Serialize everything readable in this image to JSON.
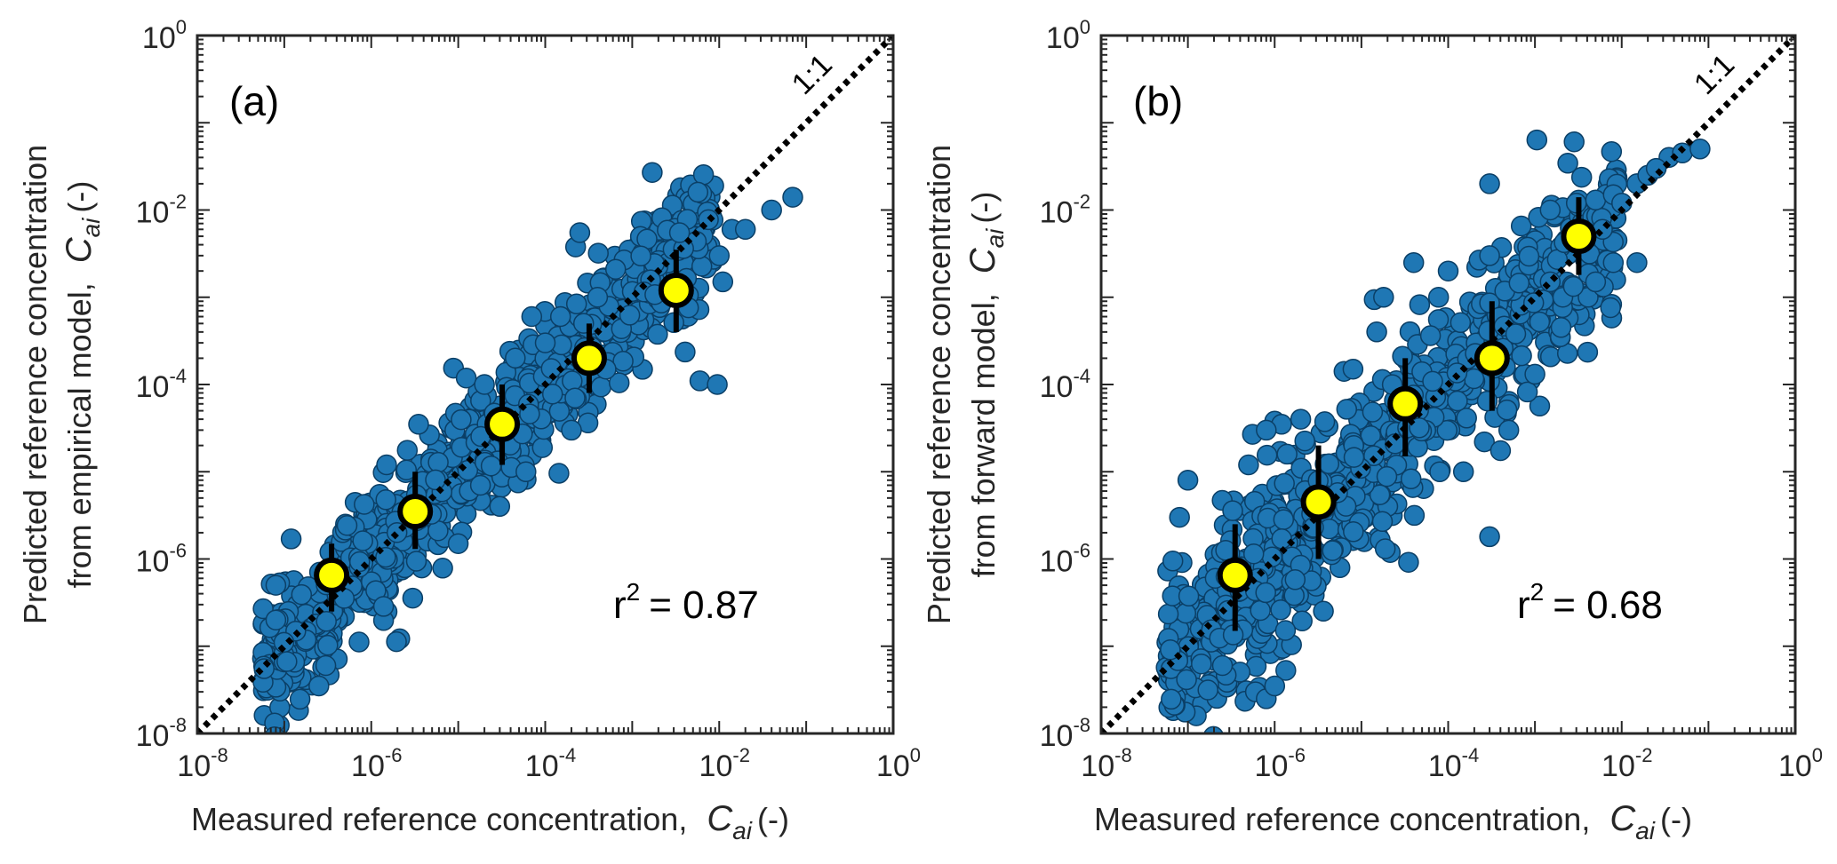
{
  "chart_data": [
    {
      "type": "scatter",
      "panel_label": "(a)",
      "xscale": "log",
      "yscale": "log",
      "xlim": [
        1e-08,
        1
      ],
      "ylim": [
        1e-08,
        1
      ],
      "xticks": [
        "10^-8",
        "10^-6",
        "10^-4",
        "10^-2",
        "10^0"
      ],
      "yticks": [
        "10^-8",
        "10^-6",
        "10^-4",
        "10^-2",
        "10^0"
      ],
      "xlabel": "Measured reference concentration,",
      "ylabel_line1": "Predicted reference concentration",
      "ylabel_line2": "from empirical model,",
      "symbol": "C",
      "symbol_sub": "ai",
      "unit": "(-)",
      "one_to_one_label": "1:1",
      "r2_label": "r",
      "r2_sup": "2",
      "r2_value": "= 0.87",
      "point_color": "#1f77b4",
      "bin_color": "#ffff00",
      "bins": [
        {
          "x": 3.5e-07,
          "y": 6.5e-07,
          "ylo": 2.5e-07,
          "yhi": 1.5e-06
        },
        {
          "x": 3.2e-06,
          "y": 3.5e-06,
          "ylo": 1.3e-06,
          "yhi": 1e-05
        },
        {
          "x": 3.2e-05,
          "y": 3.5e-05,
          "ylo": 1.2e-05,
          "yhi": 0.0001
        },
        {
          "x": 0.00032,
          "y": 0.0002,
          "ylo": 8e-05,
          "yhi": 0.0005
        },
        {
          "x": 0.0032,
          "y": 0.0012,
          "ylo": 0.0004,
          "yhi": 0.0035
        }
      ],
      "outliers": [
        {
          "x": 2e-05,
          "y": 0.0001
        },
        {
          "x": 0.0001,
          "y": 0.0003
        },
        {
          "x": 0.0002,
          "y": 3e-05
        },
        {
          "x": 0.00025,
          "y": 0.0055
        },
        {
          "x": 0.0035,
          "y": 0.0055
        },
        {
          "x": 0.006,
          "y": 0.00011
        },
        {
          "x": 0.0095,
          "y": 0.0001
        },
        {
          "x": 0.011,
          "y": 0.0015
        },
        {
          "x": 0.014,
          "y": 0.006
        },
        {
          "x": 0.02,
          "y": 0.006
        },
        {
          "x": 0.04,
          "y": 0.01
        },
        {
          "x": 0.07,
          "y": 0.014
        },
        {
          "x": 0.01,
          "y": 0.003
        },
        {
          "x": 2.5e-07,
          "y": 3.5e-08
        },
        {
          "x": 3e-07,
          "y": 6e-08
        },
        {
          "x": 8e-08,
          "y": 2e-07
        },
        {
          "x": 8e-08,
          "y": 5e-07
        },
        {
          "x": 1.2e-07,
          "y": 1.7e-06
        },
        {
          "x": 3.5e-06,
          "y": 3.5e-05
        },
        {
          "x": 1.5e-06,
          "y": 1.2e-05
        },
        {
          "x": 1.8e-05,
          "y": 7e-06
        },
        {
          "x": 1e-05,
          "y": 1.5e-06
        },
        {
          "x": 3e-05,
          "y": 4e-06
        },
        {
          "x": 6e-05,
          "y": 1e-05
        },
        {
          "x": 0.00022,
          "y": 7e-05
        },
        {
          "x": 0.0005,
          "y": 0.00015
        },
        {
          "x": 0.00015,
          "y": 0.0006
        },
        {
          "x": 7e-05,
          "y": 0.0006
        },
        {
          "x": 0.0004,
          "y": 0.001
        }
      ]
    },
    {
      "type": "scatter",
      "panel_label": "(b)",
      "xscale": "log",
      "yscale": "log",
      "xlim": [
        1e-08,
        1
      ],
      "ylim": [
        1e-08,
        1
      ],
      "xticks": [
        "10^-8",
        "10^-6",
        "10^-4",
        "10^-2",
        "10^0"
      ],
      "yticks": [
        "10^-8",
        "10^-6",
        "10^-4",
        "10^-2",
        "10^0"
      ],
      "xlabel": "Measured reference concentration,",
      "ylabel_line1": "Predicted reference concentration",
      "ylabel_line2": "from forward model,",
      "symbol": "C",
      "symbol_sub": "ai",
      "unit": "(-)",
      "one_to_one_label": "1:1",
      "r2_label": "r",
      "r2_sup": "2",
      "r2_value": "= 0.68",
      "point_color": "#1f77b4",
      "bin_color": "#ffff00",
      "bins": [
        {
          "x": 3.5e-07,
          "y": 6.5e-07,
          "ylo": 1.5e-07,
          "yhi": 2.5e-06
        },
        {
          "x": 3.2e-06,
          "y": 4.5e-06,
          "ylo": 1e-06,
          "yhi": 2e-05
        },
        {
          "x": 3.2e-05,
          "y": 6e-05,
          "ylo": 1.5e-05,
          "yhi": 0.0002
        },
        {
          "x": 0.00032,
          "y": 0.0002,
          "ylo": 5e-05,
          "yhi": 0.0009
        },
        {
          "x": 0.0032,
          "y": 0.005,
          "ylo": 0.0018,
          "yhi": 0.014
        }
      ],
      "outliers": [
        {
          "x": 0.0003,
          "y": 0.02
        },
        {
          "x": 0.0015,
          "y": 0.01
        },
        {
          "x": 0.003,
          "y": 0.012
        },
        {
          "x": 0.005,
          "y": 0.013
        },
        {
          "x": 0.008,
          "y": 0.015
        },
        {
          "x": 0.01,
          "y": 0.012
        },
        {
          "x": 0.015,
          "y": 0.02
        },
        {
          "x": 0.02,
          "y": 0.025
        },
        {
          "x": 0.035,
          "y": 0.04
        },
        {
          "x": 0.05,
          "y": 0.045
        },
        {
          "x": 0.08,
          "y": 0.05
        },
        {
          "x": 0.025,
          "y": 0.03
        },
        {
          "x": 0.006,
          "y": 0.006
        },
        {
          "x": 0.008,
          "y": 0.0025
        },
        {
          "x": 0.015,
          "y": 0.0025
        },
        {
          "x": 0.005,
          "y": 0.0015
        },
        {
          "x": 0.002,
          "y": 0.00045
        },
        {
          "x": 4e-05,
          "y": 0.0025
        },
        {
          "x": 1.5e-05,
          "y": 0.0004
        },
        {
          "x": 1.8e-05,
          "y": 0.001
        },
        {
          "x": 8e-06,
          "y": 0.00015
        },
        {
          "x": 2e-06,
          "y": 4e-05
        },
        {
          "x": 1.2e-06,
          "y": 3.5e-05
        },
        {
          "x": 8e-07,
          "y": 3e-05
        },
        {
          "x": 5e-07,
          "y": 1.2e-05
        },
        {
          "x": 1e-07,
          "y": 8e-06
        },
        {
          "x": 8e-08,
          "y": 3e-06
        },
        {
          "x": 6e-07,
          "y": 3e-08
        },
        {
          "x": 8e-07,
          "y": 2.5e-08
        },
        {
          "x": 1e-06,
          "y": 3.5e-08
        },
        {
          "x": 2.5e-07,
          "y": 6e-08
        },
        {
          "x": 0.0005,
          "y": 3e-05
        },
        {
          "x": 0.0003,
          "y": 1.8e-06
        },
        {
          "x": 0.00015,
          "y": 1e-05
        },
        {
          "x": 8e-05,
          "y": 1e-05
        },
        {
          "x": 0.0015,
          "y": 0.0015
        },
        {
          "x": 0.0003,
          "y": 0.003
        },
        {
          "x": 0.0001,
          "y": 0.002
        }
      ]
    }
  ]
}
